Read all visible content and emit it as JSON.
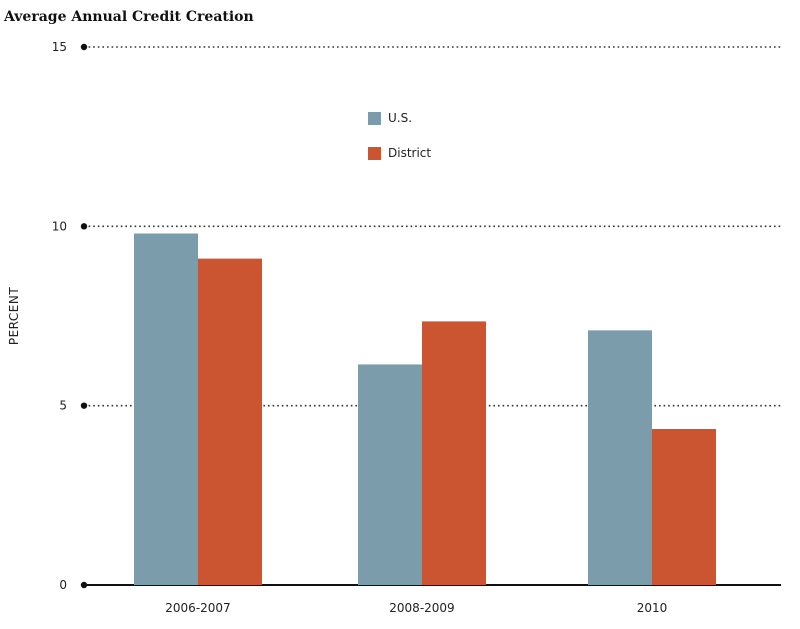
{
  "chart_data": {
    "type": "bar",
    "title": "Average Annual Credit Creation",
    "ylabel": "PERCENT",
    "xlabel": "",
    "categories": [
      "2006-2007",
      "2008-2009",
      "2010"
    ],
    "series": [
      {
        "name": "U.S.",
        "values": [
          9.8,
          6.15,
          7.1
        ],
        "color": "#7b9dab"
      },
      {
        "name": "District",
        "values": [
          9.1,
          7.35,
          4.35
        ],
        "color": "#cb5530"
      }
    ],
    "ylim": [
      0,
      15
    ],
    "yticks": [
      "0",
      "5",
      "10",
      "15"
    ],
    "grid": true,
    "legend": "top-center"
  }
}
